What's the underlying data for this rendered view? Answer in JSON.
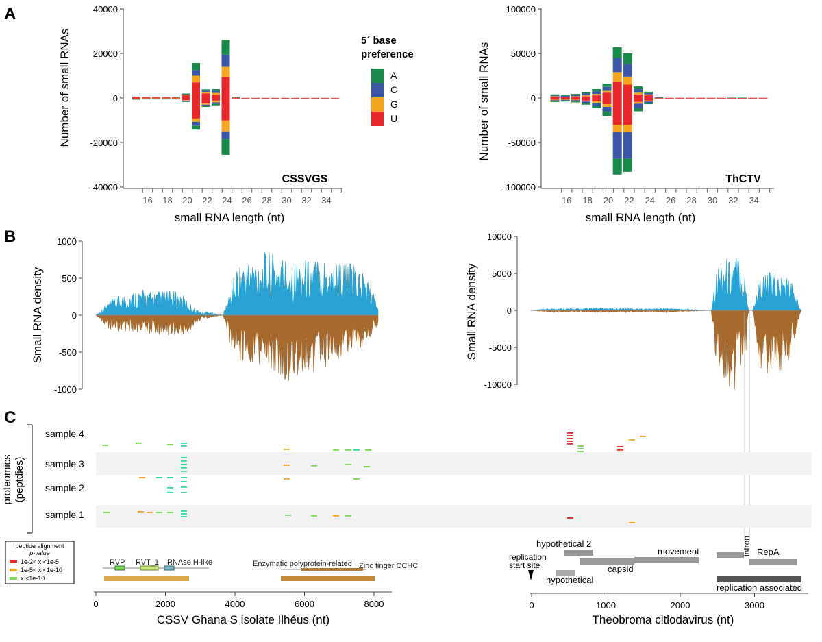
{
  "panels": {
    "a": "A",
    "b": "B",
    "c": "C"
  },
  "legend_5p": {
    "title_line1": "5´ base",
    "title_line2": "preference",
    "items": [
      {
        "label": "A",
        "color": "#1a8a4a"
      },
      {
        "label": "C",
        "color": "#3a57a8"
      },
      {
        "label": "G",
        "color": "#f5a51f"
      },
      {
        "label": "U",
        "color": "#e8282b"
      }
    ]
  },
  "chart_data": [
    {
      "type": "bar",
      "id": "cssvgs_lengths",
      "title": "CSSVGS",
      "xlabel": "small RNA length (nt)",
      "ylabel": "Number of small RNAs",
      "ylim": [
        -40000,
        40000
      ],
      "yticks": [
        40000,
        20000,
        0,
        -20000,
        -40000
      ],
      "ytick_labels": [
        "40000",
        "20000",
        "0",
        "-20000",
        "-40000"
      ],
      "xtick_labels": [
        "16",
        "18",
        "20",
        "22",
        "24",
        "26",
        "28",
        "30",
        "32",
        "34"
      ],
      "x": [
        15,
        16,
        17,
        18,
        19,
        20,
        21,
        22,
        23,
        24,
        25,
        26,
        27,
        28,
        29,
        30,
        31,
        32,
        33,
        34,
        35
      ],
      "series": [
        {
          "name": "A",
          "pos": [
            50,
            50,
            50,
            50,
            50,
            200,
            3200,
            600,
            800,
            6500,
            50,
            0,
            0,
            0,
            0,
            0,
            0,
            0,
            0,
            0,
            0
          ],
          "neg": [
            50,
            50,
            50,
            50,
            50,
            150,
            1800,
            400,
            600,
            7000,
            0,
            0,
            0,
            0,
            0,
            0,
            0,
            0,
            0,
            0,
            0
          ]
        },
        {
          "name": "C",
          "pos": [
            100,
            100,
            100,
            100,
            100,
            300,
            2500,
            700,
            900,
            5500,
            50,
            0,
            0,
            0,
            0,
            0,
            0,
            0,
            0,
            0,
            0
          ],
          "neg": [
            100,
            100,
            100,
            100,
            100,
            250,
            1700,
            600,
            700,
            3500,
            0,
            0,
            0,
            0,
            0,
            0,
            0,
            0,
            0,
            0,
            0
          ]
        },
        {
          "name": "G",
          "pos": [
            100,
            100,
            100,
            100,
            100,
            300,
            3000,
            600,
            900,
            4500,
            50,
            0,
            0,
            0,
            0,
            0,
            0,
            0,
            0,
            0,
            0
          ],
          "neg": [
            100,
            100,
            100,
            100,
            100,
            300,
            1500,
            500,
            800,
            5000,
            0,
            0,
            0,
            0,
            0,
            0,
            0,
            0,
            0,
            0,
            0
          ]
        },
        {
          "name": "U",
          "pos": [
            400,
            300,
            300,
            300,
            300,
            1200,
            7000,
            2000,
            1400,
            9500,
            300,
            50,
            50,
            50,
            50,
            50,
            50,
            50,
            50,
            50,
            50
          ],
          "neg": [
            300,
            200,
            200,
            200,
            200,
            1000,
            9200,
            2500,
            1200,
            10000,
            200,
            50,
            50,
            50,
            50,
            50,
            50,
            50,
            50,
            50,
            50
          ]
        }
      ]
    },
    {
      "type": "bar",
      "id": "thctv_lengths",
      "title": "ThCTV",
      "xlabel": "small RNA length (nt)",
      "ylabel": "Number of small RNAs",
      "ylim": [
        -100000,
        100000
      ],
      "yticks": [
        100000,
        50000,
        0,
        -50000,
        -100000
      ],
      "ytick_labels": [
        "100000",
        "50000",
        "0",
        "-50000",
        "-100000"
      ],
      "xtick_labels": [
        "16",
        "18",
        "20",
        "22",
        "24",
        "26",
        "28",
        "30",
        "32",
        "34"
      ],
      "x": [
        15,
        16,
        17,
        18,
        19,
        20,
        21,
        22,
        23,
        24,
        25,
        26,
        27,
        28,
        29,
        30,
        31,
        32,
        33,
        34,
        35
      ],
      "series": [
        {
          "name": "A",
          "pos": [
            1000,
            1000,
            1000,
            1500,
            2500,
            3500,
            12000,
            12000,
            3000,
            1500,
            200,
            0,
            0,
            0,
            0,
            0,
            0,
            200,
            200,
            0,
            0
          ],
          "neg": [
            1000,
            1000,
            1000,
            1500,
            2500,
            4500,
            18000,
            15000,
            3500,
            1500,
            0,
            0,
            0,
            0,
            0,
            0,
            0,
            0,
            0,
            0,
            0
          ]
        },
        {
          "name": "C",
          "pos": [
            1000,
            1000,
            1500,
            2000,
            3000,
            4500,
            16000,
            14000,
            4000,
            1500,
            0,
            0,
            0,
            0,
            0,
            0,
            0,
            0,
            0,
            0,
            0
          ],
          "neg": [
            1000,
            1000,
            1500,
            2000,
            3500,
            5500,
            30000,
            30000,
            5000,
            1500,
            0,
            0,
            0,
            0,
            0,
            0,
            0,
            0,
            0,
            0,
            0
          ]
        },
        {
          "name": "G",
          "pos": [
            500,
            500,
            500,
            1000,
            1500,
            2000,
            11000,
            9000,
            2000,
            1000,
            0,
            0,
            0,
            0,
            0,
            0,
            0,
            0,
            0,
            0,
            0
          ],
          "neg": [
            500,
            500,
            500,
            1000,
            1500,
            3000,
            8000,
            8000,
            2000,
            1000,
            0,
            0,
            0,
            0,
            0,
            0,
            0,
            0,
            0,
            0,
            0
          ]
        },
        {
          "name": "U",
          "pos": [
            1500,
            1000,
            1500,
            2000,
            3000,
            6000,
            18000,
            15000,
            4000,
            3000,
            500,
            200,
            200,
            200,
            200,
            200,
            200,
            200,
            200,
            200,
            200
          ],
          "neg": [
            2000,
            1500,
            2000,
            3000,
            4000,
            7000,
            30000,
            30000,
            4500,
            3000,
            500,
            200,
            200,
            200,
            200,
            200,
            200,
            200,
            200,
            200,
            200
          ]
        }
      ]
    },
    {
      "type": "area",
      "id": "cssv_density",
      "xlabel": "CSSV Ghana S isolate Ilhéus (nt)",
      "ylabel": "Small RNA density",
      "ylim": [
        -1000,
        1000
      ],
      "yticks": [
        1000,
        500,
        0,
        -500,
        -1000
      ],
      "ytick_labels": [
        "1000",
        "500",
        "0",
        "-500",
        "-1000"
      ],
      "xlim": [
        0,
        8000
      ],
      "x": [
        0,
        400,
        800,
        1200,
        1600,
        2000,
        2400,
        2700,
        3000,
        3200,
        3400,
        3600,
        3800,
        4000,
        4400,
        4800,
        5200,
        5600,
        6000,
        6400,
        6800,
        7200,
        7600,
        8000
      ],
      "series": [
        {
          "name": "sense",
          "color": "#29a3d4",
          "values": [
            0,
            130,
            180,
            220,
            200,
            210,
            190,
            90,
            20,
            40,
            10,
            0,
            200,
            420,
            480,
            520,
            510,
            460,
            470,
            490,
            470,
            430,
            380,
            100
          ]
        },
        {
          "name": "antisense",
          "color": "#a66a2e",
          "values": [
            0,
            -120,
            -140,
            -150,
            -160,
            -170,
            -190,
            -150,
            -20,
            -30,
            -10,
            0,
            -260,
            -380,
            -420,
            -480,
            -520,
            -560,
            -500,
            -460,
            -380,
            -330,
            -260,
            -80
          ]
        }
      ]
    },
    {
      "type": "area",
      "id": "thctv_density",
      "xlabel": "Theobroma citlodavirus (nt)",
      "ylabel": "Small RNA density",
      "ylim": [
        -10000,
        10000
      ],
      "yticks": [
        10000,
        5000,
        0,
        -5000,
        -10000
      ],
      "ytick_labels": [
        "10000",
        "5000",
        "0",
        "-5000",
        "-10000"
      ],
      "xlim": [
        0,
        3600
      ],
      "x": [
        0,
        300,
        600,
        900,
        1200,
        1500,
        1800,
        2100,
        2400,
        2450,
        2550,
        2650,
        2750,
        2850,
        2900,
        2950,
        3050,
        3150,
        3300,
        3450,
        3600
      ],
      "series": [
        {
          "name": "sense",
          "color": "#29a3d4",
          "values": [
            0,
            200,
            150,
            200,
            200,
            150,
            200,
            100,
            0,
            3000,
            4600,
            4200,
            4800,
            3000,
            0,
            0,
            2800,
            3200,
            3000,
            2900,
            0
          ]
        },
        {
          "name": "antisense",
          "color": "#a66a2e",
          "values": [
            0,
            -200,
            -150,
            -200,
            -200,
            -150,
            -200,
            -100,
            0,
            -4200,
            -6000,
            -7000,
            -6500,
            -4500,
            0,
            0,
            -5000,
            -5800,
            -5200,
            -4000,
            0
          ]
        }
      ]
    }
  ],
  "proteomics": {
    "axis_line1": "proteomics",
    "axis_line2": "(peptdies)",
    "samples": [
      "sample 4",
      "sample 3",
      "sample 2",
      "sample 1"
    ]
  },
  "pvalue_legend": {
    "title_line1": "peptide alignment",
    "title_line2": "p-value",
    "items": [
      {
        "label": "1e-2< x <1e-5",
        "color": "#e8282b"
      },
      {
        "label": "1e-5< x <1e-10",
        "color": "#f5a51f"
      },
      {
        "label": "x <1e-10",
        "color": "#7ed957"
      }
    ]
  },
  "cssv_genome": {
    "features": [
      "RVP",
      "RVT_1",
      "RNAse H-like",
      "Enzymatic polyprotein-related",
      "Zinc finger CCHC"
    ],
    "xticks": [
      "0",
      "2000",
      "4000",
      "6000",
      "8000"
    ]
  },
  "thctv_genome": {
    "features": [
      "hypothetical 2",
      "replication",
      "start site",
      "hypothetical",
      "capsid",
      "movement",
      "intron",
      "RepA",
      "replication associated"
    ],
    "xticks": [
      "0",
      "1000",
      "2000",
      "3000"
    ]
  }
}
